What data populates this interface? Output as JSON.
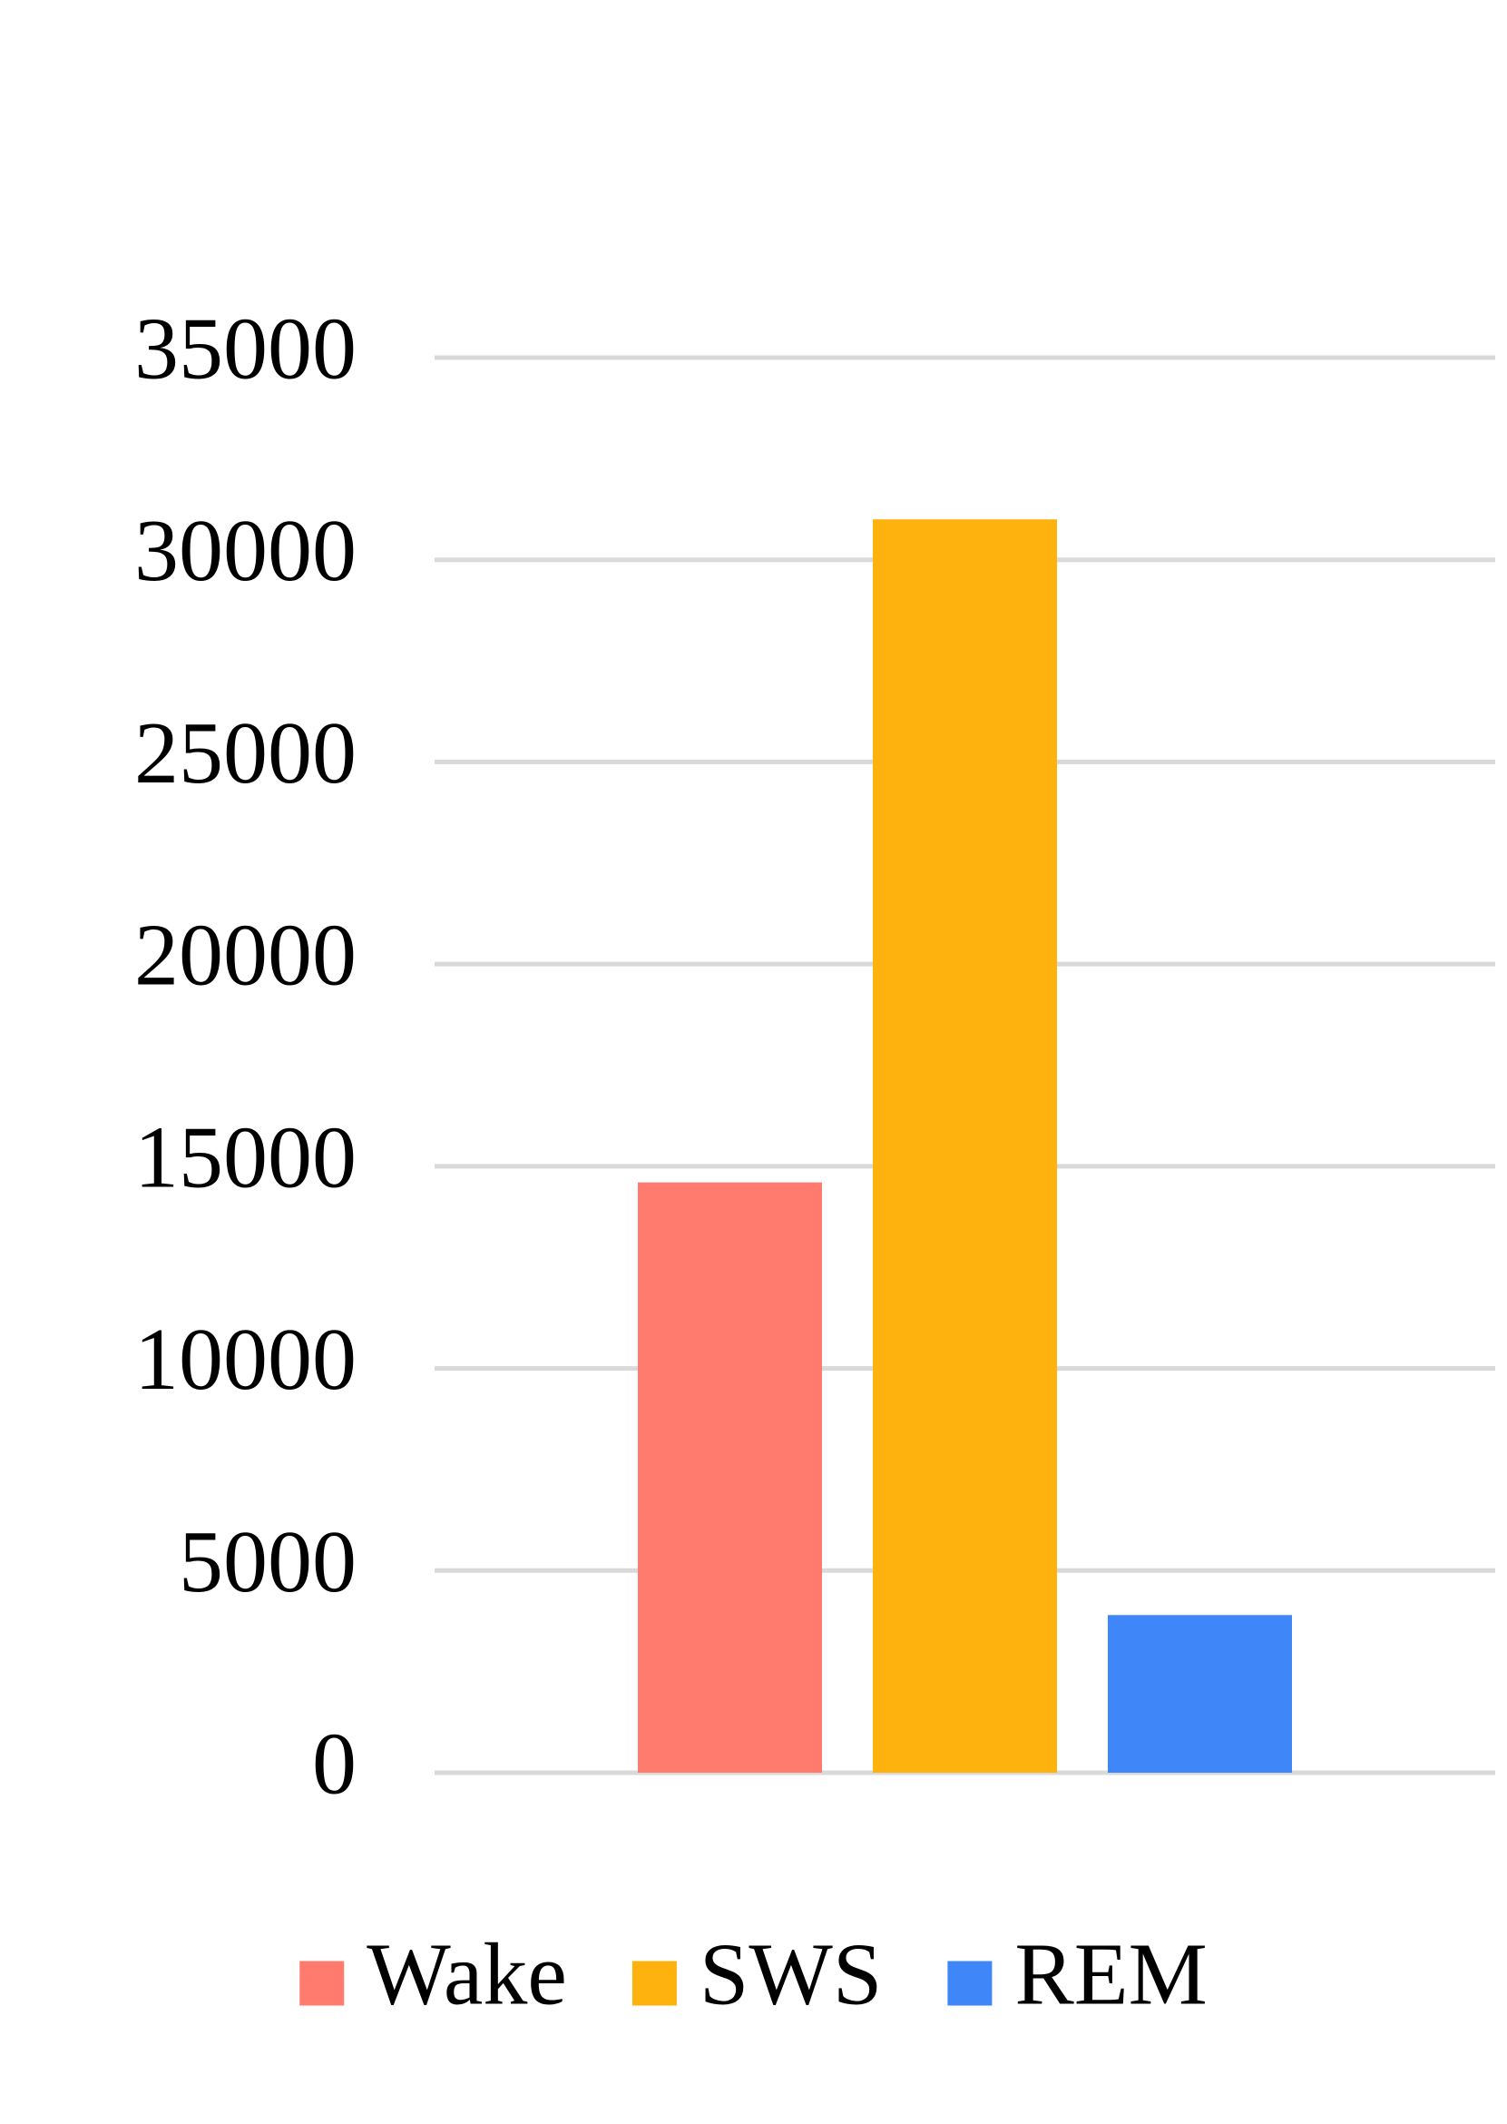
{
  "chart_data": {
    "type": "bar",
    "categories": [
      null
    ],
    "series": [
      {
        "name": "Wake",
        "color": "#ff7b6e",
        "values": [
          14600
        ]
      },
      {
        "name": "SWS",
        "color": "#fdb20d",
        "values": [
          31000
        ]
      },
      {
        "name": "REM",
        "color": "#3f86f9",
        "values": [
          3900
        ]
      }
    ],
    "ylim": [
      0,
      35000
    ],
    "yticks": [
      0,
      5000,
      10000,
      15000,
      20000,
      25000,
      30000,
      35000
    ],
    "grid": true,
    "legend": "bottom"
  }
}
